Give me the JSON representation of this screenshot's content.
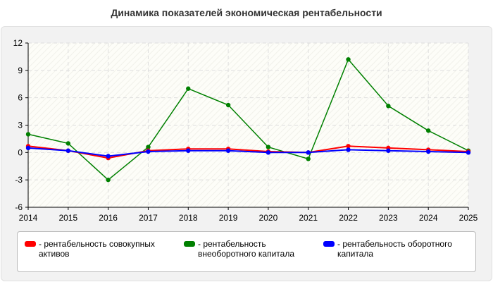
{
  "title": "Динамика показателей экономическая рентабельности",
  "chart_data": {
    "type": "line",
    "x": [
      2014,
      2015,
      2016,
      2017,
      2018,
      2019,
      2020,
      2021,
      2022,
      2023,
      2024,
      2025
    ],
    "ylim": [
      -6,
      12
    ],
    "yticks": [
      -6,
      -3,
      0,
      3,
      6,
      9,
      12
    ],
    "grid": true,
    "legend_position": "bottom",
    "series": [
      {
        "name": "рентабельность совокупных активов",
        "color": "#ff0000",
        "values": [
          0.7,
          0.2,
          -0.6,
          0.2,
          0.4,
          0.4,
          0.1,
          0.0,
          0.7,
          0.5,
          0.3,
          0.1
        ]
      },
      {
        "name": "рентабельность внеоборотного капитала",
        "color": "#008000",
        "values": [
          2.0,
          1.0,
          -3.0,
          0.6,
          7.0,
          5.2,
          0.6,
          -0.7,
          10.2,
          5.1,
          2.4,
          0.2
        ]
      },
      {
        "name": "рентабельность оборотного капитала",
        "color": "#0000ff",
        "values": [
          0.5,
          0.2,
          -0.4,
          0.1,
          0.2,
          0.2,
          0.0,
          0.0,
          0.3,
          0.2,
          0.1,
          0.0
        ]
      }
    ]
  },
  "legend": {
    "items": [
      {
        "label": "- рентабельность совокупных активов",
        "color": "#ff0000"
      },
      {
        "label": "- рентабельность внеоборотного капитала",
        "color": "#008000"
      },
      {
        "label": "- рентабельность оборотного капитала",
        "color": "#0000ff"
      }
    ]
  }
}
